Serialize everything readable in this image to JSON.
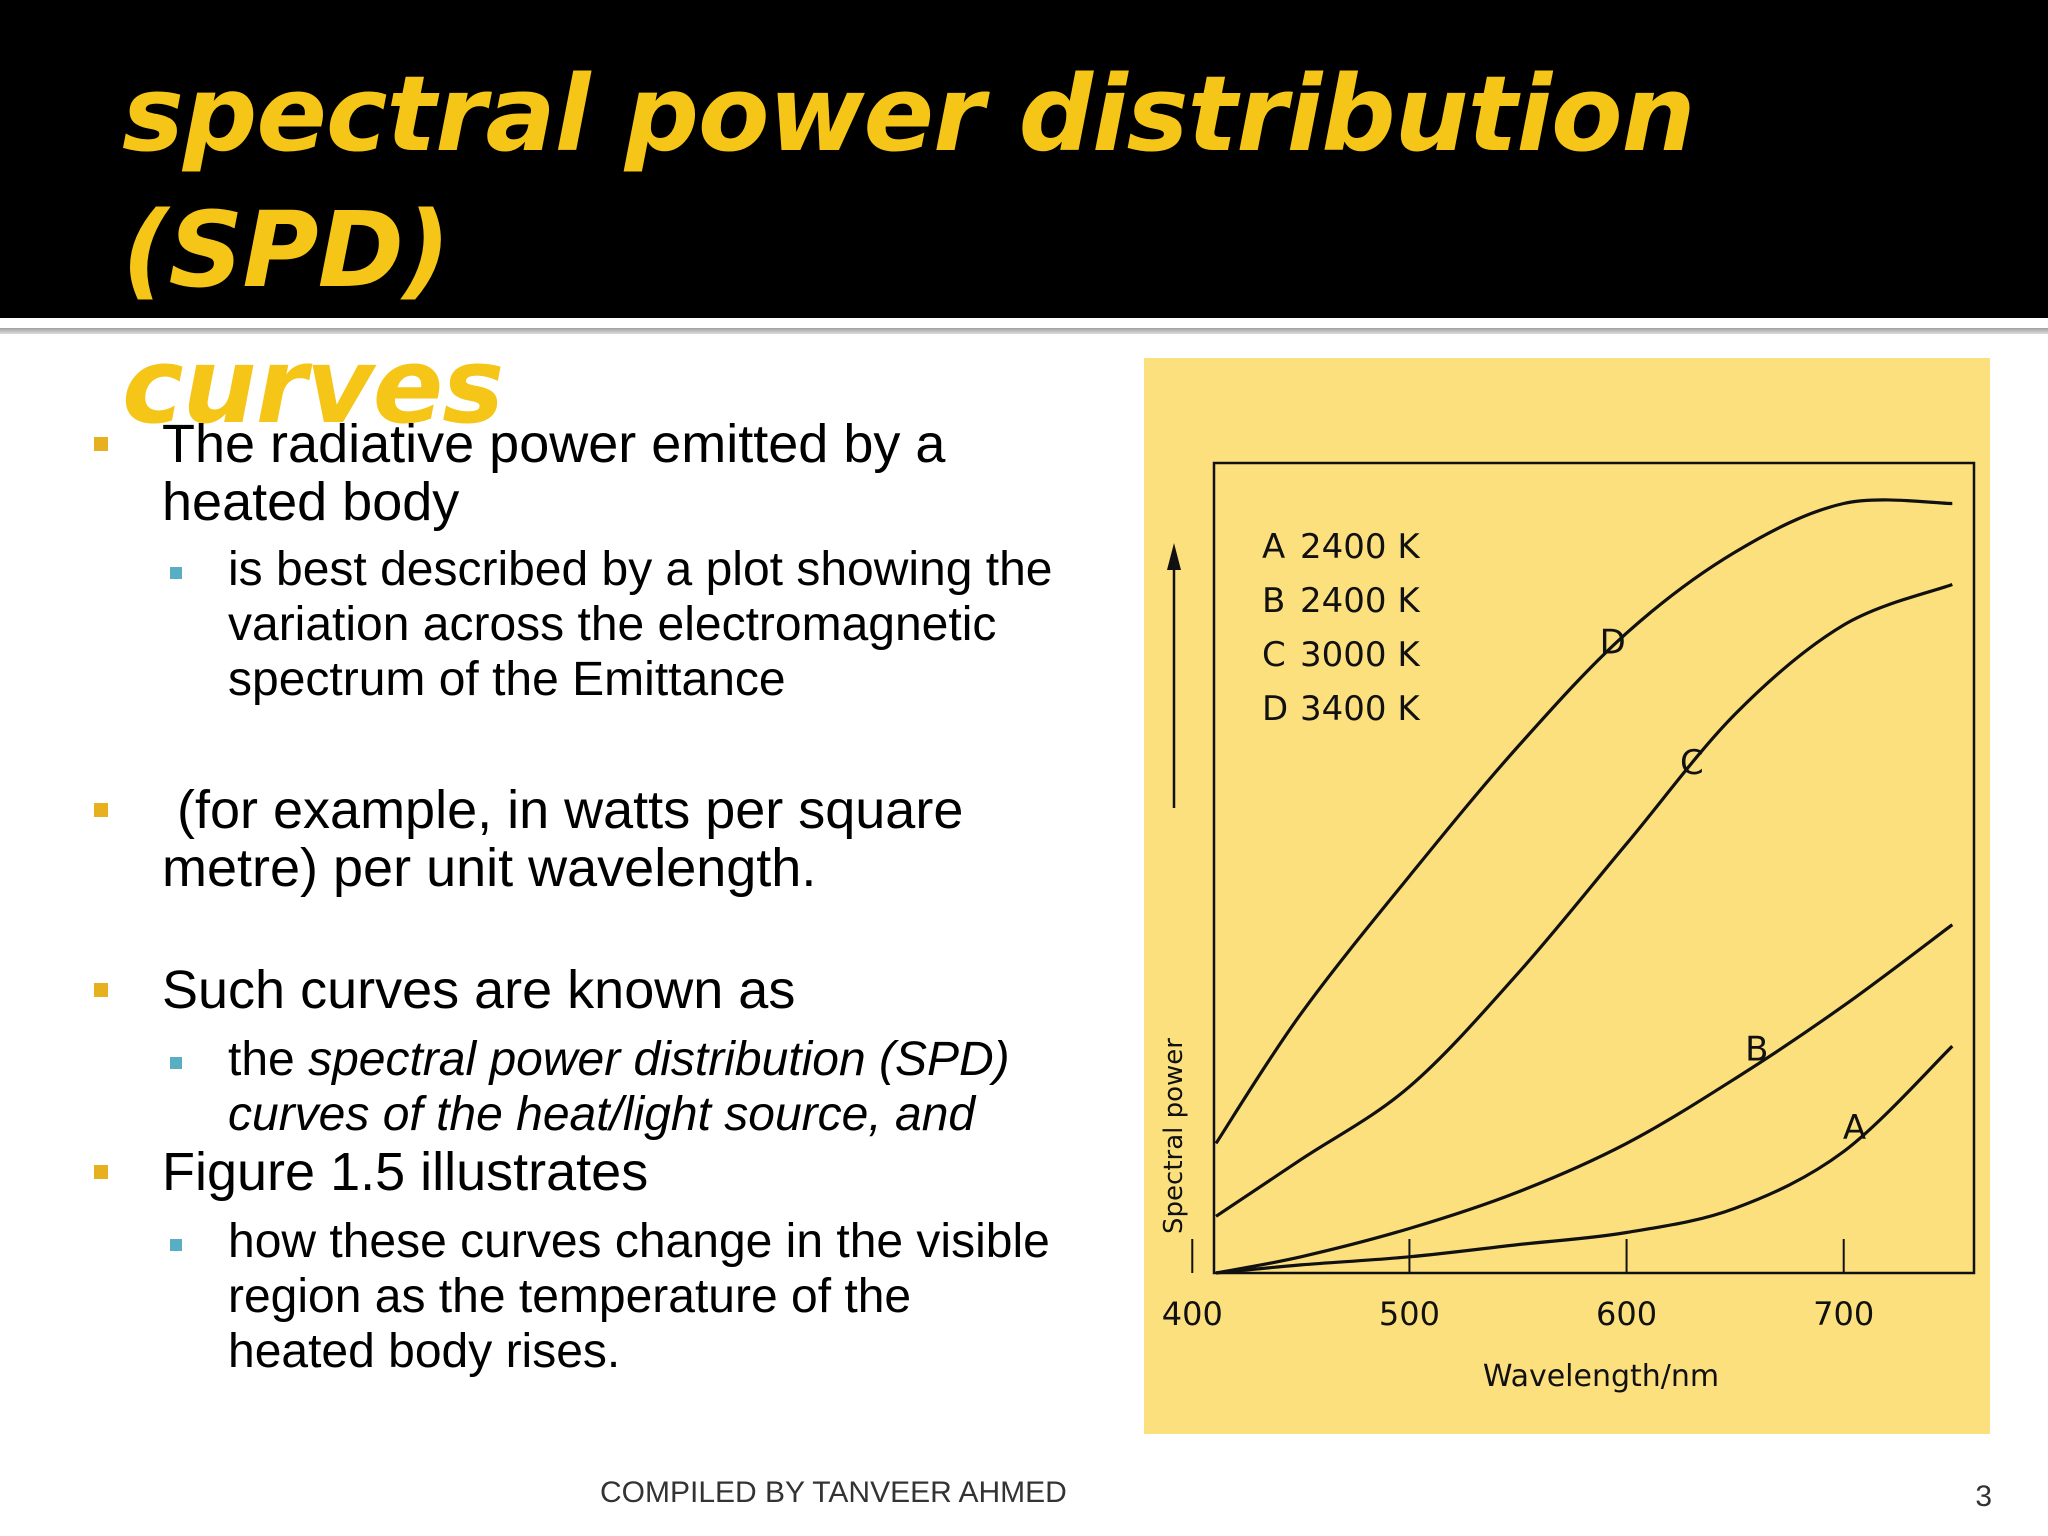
{
  "slide": {
    "title_line1": "spectral power distribution (SPD)",
    "title_line2": "curves",
    "accent_color": "#f5c518",
    "bullet_color": "#e6b01e",
    "sub_bullet_color": "#5aaec4"
  },
  "content": {
    "b1_line1": "The radiative power emitted by a",
    "b1_line2": "heated body",
    "b1_sub_line1": "is best described by a plot showing the",
    "b1_sub_line2": "variation across the electromagnetic",
    "b1_sub_line3": "spectrum of the Emittance",
    "b2_line1": " (for example, in watts per square",
    "b2_line2": "metre) per unit wavelength.",
    "b3_line1": "Such curves are known as",
    "b3_sub_prefix": "the ",
    "b3_sub_italic1": "spectral power distribution (SPD)",
    "b3_sub_italic2": "curves of the heat/light source, and",
    "b4_line1": "Figure 1.5 illustrates",
    "b4_sub_line1": "how these curves change in the visible",
    "b4_sub_line2": "region as the temperature of the",
    "b4_sub_line3": "heated body rises."
  },
  "footer": {
    "credit": "COMPILED BY TANVEER AHMED",
    "page_number": "3"
  },
  "chart_data": {
    "type": "line",
    "title": "",
    "xlabel": "Wavelength/nm",
    "ylabel": "Spectral power",
    "xlim": [
      400,
      750
    ],
    "ylim": [
      0,
      1
    ],
    "x_ticks": [
      "400",
      "500",
      "600",
      "700"
    ],
    "legend": [
      {
        "letter": "A",
        "temp": "2400 K"
      },
      {
        "letter": "B",
        "temp": "2400 K"
      },
      {
        "letter": "C",
        "temp": "3000 K"
      },
      {
        "letter": "D",
        "temp": "3400 K"
      }
    ],
    "series": [
      {
        "name": "A",
        "x": [
          400,
          450,
          500,
          550,
          600,
          650,
          700,
          750
        ],
        "values": [
          0.0,
          0.01,
          0.02,
          0.035,
          0.05,
          0.08,
          0.15,
          0.28
        ]
      },
      {
        "name": "B",
        "x": [
          400,
          450,
          500,
          550,
          600,
          650,
          700,
          750
        ],
        "values": [
          0.0,
          0.02,
          0.055,
          0.1,
          0.16,
          0.24,
          0.33,
          0.43
        ]
      },
      {
        "name": "C",
        "x": [
          400,
          450,
          500,
          550,
          600,
          650,
          700,
          750
        ],
        "values": [
          0.07,
          0.14,
          0.23,
          0.37,
          0.53,
          0.69,
          0.8,
          0.85
        ]
      },
      {
        "name": "D",
        "x": [
          400,
          450,
          500,
          550,
          600,
          650,
          700,
          750
        ],
        "values": [
          0.16,
          0.32,
          0.49,
          0.65,
          0.79,
          0.89,
          0.95,
          0.95
        ]
      }
    ],
    "curve_label_x": {
      "A": 695,
      "B": 650,
      "C": 620,
      "D": 583
    },
    "grid": false,
    "line_color": "#111111",
    "background": "#fde07e"
  }
}
